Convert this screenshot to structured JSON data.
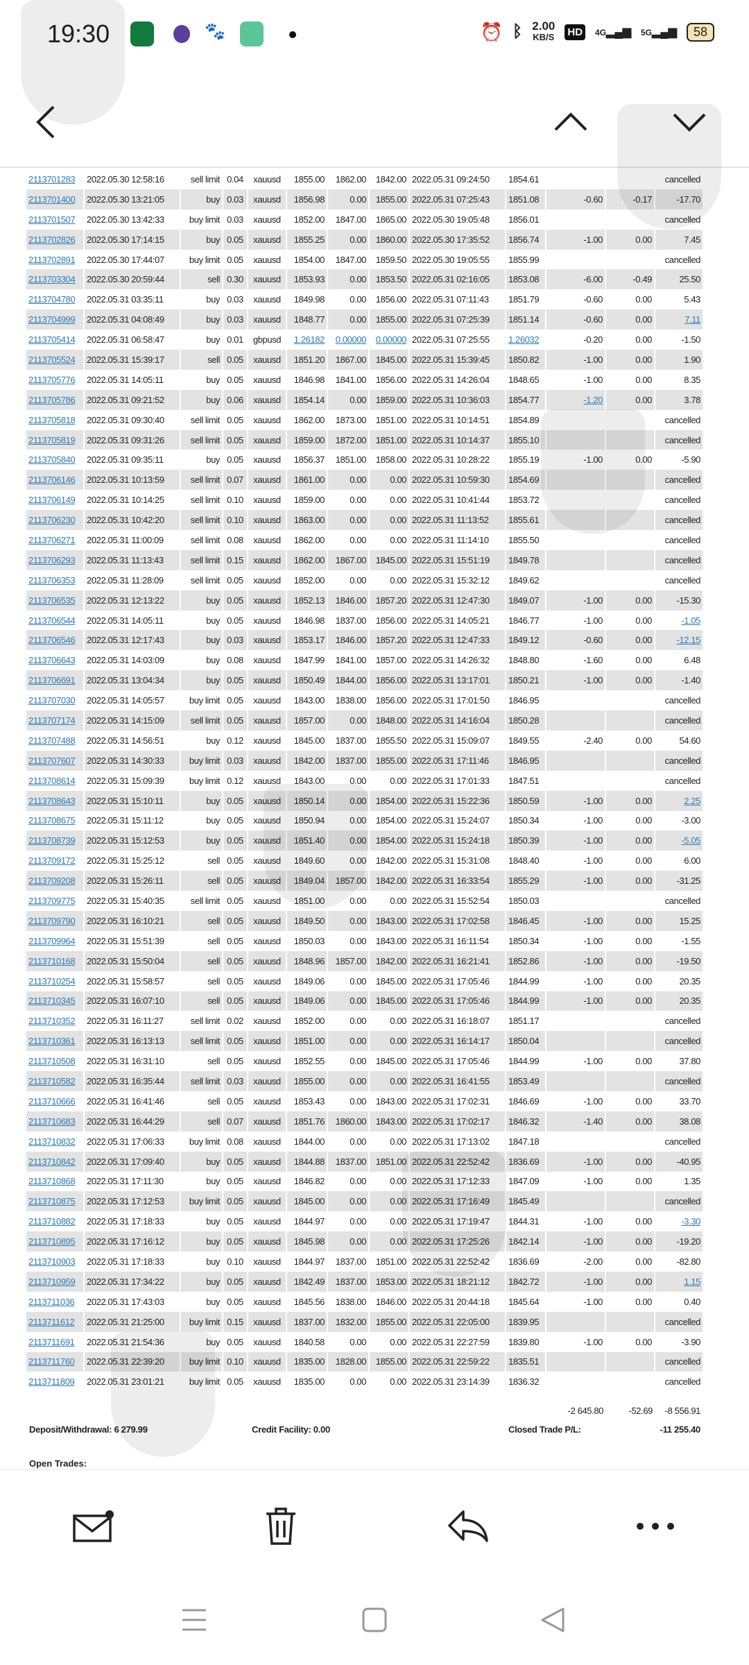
{
  "status_bar": {
    "time": "19:30",
    "net_speed": "2.00",
    "net_unit": "KB/S",
    "hd": "HD",
    "sig1": "4G",
    "sig2": "5G",
    "battery": "58",
    "icons": [
      "oppo-app-icon",
      "browser-icon",
      "baidu-paw-icon",
      "reader-icon",
      "notification-dot-icon",
      "alarm-icon",
      "bluetooth-icon",
      "signal-4g-icon",
      "signal-5g-icon",
      "battery-icon"
    ]
  },
  "nav": {
    "icons": [
      "back-arrow-icon",
      "chevron-up-icon",
      "chevron-down-icon"
    ]
  },
  "colors": {
    "link": "#2a7ab8",
    "row_alt": "#e3e3e3"
  },
  "trades": [
    [
      "2113701283",
      "2022.05.30 12:58:16",
      "sell limit",
      "0.04",
      "xauusd",
      "1855.00",
      "1862.00",
      "1842.00",
      "2022.05.31 09:24:50",
      "1854.61",
      "",
      "",
      "cancelled",
      []
    ],
    [
      "2113701400",
      "2022.05.30 13:21:05",
      "buy",
      "0.03",
      "xauusd",
      "1856.98",
      "0.00",
      "1855.00",
      "2022.05.31 07:25:43",
      "1851.08",
      "-0.60",
      "-0.17",
      "-17.70",
      []
    ],
    [
      "2113701507",
      "2022.05.30 13:42:33",
      "buy limit",
      "0.03",
      "xauusd",
      "1852.00",
      "1847.00",
      "1865.00",
      "2022.05.30 19:05:48",
      "1856.01",
      "",
      "",
      "cancelled",
      []
    ],
    [
      "2113702826",
      "2022.05.30 17:14:15",
      "buy",
      "0.05",
      "xauusd",
      "1855.25",
      "0.00",
      "1860.00",
      "2022.05.30 17:35:52",
      "1856.74",
      "-1.00",
      "0.00",
      "7.45",
      []
    ],
    [
      "2113702891",
      "2022.05.30 17:44:07",
      "buy limit",
      "0.05",
      "xauusd",
      "1854.00",
      "1847.00",
      "1859.50",
      "2022.05.30 19:05:55",
      "1855.99",
      "",
      "",
      "cancelled",
      []
    ],
    [
      "2113703304",
      "2022.05.30 20:59:44",
      "sell",
      "0.30",
      "xauusd",
      "1853.93",
      "0.00",
      "1853.50",
      "2022.05.31 02:16:05",
      "1853.08",
      "-6.00",
      "-0.49",
      "25.50",
      []
    ],
    [
      "2113704780",
      "2022.05.31 03:35:11",
      "buy",
      "0.03",
      "xauusd",
      "1849.98",
      "0.00",
      "1856.00",
      "2022.05.31 07:11:43",
      "1851.79",
      "-0.60",
      "0.00",
      "5.43",
      []
    ],
    [
      "2113704999",
      "2022.05.31 04:08:49",
      "buy",
      "0.03",
      "xauusd",
      "1848.77",
      "0.00",
      "1855.00",
      "2022.05.31 07:25:39",
      "1851.14",
      "-0.60",
      "0.00",
      "7.11",
      [
        12
      ]
    ],
    [
      "2113705414",
      "2022.05.31 06:58:47",
      "buy",
      "0.01",
      "gbpusd",
      "1.26182",
      "0.00000",
      "0.00000",
      "2022.05.31 07:25:55",
      "1.26032",
      "-0.20",
      "0.00",
      "-1.50",
      [
        5,
        6,
        7,
        9
      ]
    ],
    [
      "2113705524",
      "2022.05.31 15:39:17",
      "sell",
      "0.05",
      "xauusd",
      "1851.20",
      "1867.00",
      "1845.00",
      "2022.05.31 15:39:45",
      "1850.82",
      "-1.00",
      "0.00",
      "1.90",
      []
    ],
    [
      "2113705776",
      "2022.05.31 14:05:11",
      "buy",
      "0.05",
      "xauusd",
      "1846.98",
      "1841.00",
      "1856.00",
      "2022.05.31 14:26:04",
      "1848.65",
      "-1.00",
      "0.00",
      "8.35",
      []
    ],
    [
      "2113705786",
      "2022.05.31 09:21:52",
      "buy",
      "0.06",
      "xauusd",
      "1854.14",
      "0.00",
      "1859.00",
      "2022.05.31 10:36:03",
      "1854.77",
      "-1.20",
      "0.00",
      "3.78",
      [
        10
      ]
    ],
    [
      "2113705818",
      "2022.05.31 09:30:40",
      "sell limit",
      "0.05",
      "xauusd",
      "1862.00",
      "1873.00",
      "1851.00",
      "2022.05.31 10:14:51",
      "1854.89",
      "",
      "",
      "cancelled",
      []
    ],
    [
      "2113705819",
      "2022.05.31 09:31:26",
      "sell limit",
      "0.05",
      "xauusd",
      "1859.00",
      "1872.00",
      "1851.00",
      "2022.05.31 10:14:37",
      "1855.10",
      "",
      "",
      "cancelled",
      []
    ],
    [
      "2113705840",
      "2022.05.31 09:35:11",
      "buy",
      "0.05",
      "xauusd",
      "1856.37",
      "1851.00",
      "1858.00",
      "2022.05.31 10:28:22",
      "1855.19",
      "-1.00",
      "0.00",
      "-5.90",
      []
    ],
    [
      "2113706146",
      "2022.05.31 10:13:59",
      "sell limit",
      "0.07",
      "xauusd",
      "1861.00",
      "0.00",
      "0.00",
      "2022.05.31 10:59:30",
      "1854.69",
      "",
      "",
      "cancelled",
      []
    ],
    [
      "2113706149",
      "2022.05.31 10:14:25",
      "sell limit",
      "0.10",
      "xauusd",
      "1859.00",
      "0.00",
      "0.00",
      "2022.05.31 10:41:44",
      "1853.72",
      "",
      "",
      "cancelled",
      []
    ],
    [
      "2113706230",
      "2022.05.31 10:42:20",
      "sell limit",
      "0.10",
      "xauusd",
      "1863.00",
      "0.00",
      "0.00",
      "2022.05.31 11:13:52",
      "1855.61",
      "",
      "",
      "cancelled",
      []
    ],
    [
      "2113706271",
      "2022.05.31 11:00:09",
      "sell limit",
      "0.08",
      "xauusd",
      "1862.00",
      "0.00",
      "0.00",
      "2022.05.31 11:14:10",
      "1855.50",
      "",
      "",
      "cancelled",
      []
    ],
    [
      "2113706293",
      "2022.05.31 11:13:43",
      "sell limit",
      "0.15",
      "xauusd",
      "1862.00",
      "1867.00",
      "1845.00",
      "2022.05.31 15:51:19",
      "1849.78",
      "",
      "",
      "cancelled",
      []
    ],
    [
      "2113706353",
      "2022.05.31 11:28:09",
      "sell limit",
      "0.05",
      "xauusd",
      "1852.00",
      "0.00",
      "0.00",
      "2022.05.31 15:32:12",
      "1849.62",
      "",
      "",
      "cancelled",
      []
    ],
    [
      "2113706535",
      "2022.05.31 12:13:22",
      "buy",
      "0.05",
      "xauusd",
      "1852.13",
      "1846.00",
      "1857.20",
      "2022.05.31 12:47:30",
      "1849.07",
      "-1.00",
      "0.00",
      "-15.30",
      []
    ],
    [
      "2113706544",
      "2022.05.31 14:05:11",
      "buy",
      "0.05",
      "xauusd",
      "1846.98",
      "1837.00",
      "1856.00",
      "2022.05.31 14:05:21",
      "1846.77",
      "-1.00",
      "0.00",
      "-1.05",
      [
        12
      ]
    ],
    [
      "2113706546",
      "2022.05.31 12:17:43",
      "buy",
      "0.03",
      "xauusd",
      "1853.17",
      "1846.00",
      "1857.20",
      "2022.05.31 12:47:33",
      "1849.12",
      "-0.60",
      "0.00",
      "-12.15",
      [
        12
      ]
    ],
    [
      "2113706643",
      "2022.05.31 14:03:09",
      "buy",
      "0.08",
      "xauusd",
      "1847.99",
      "1841.00",
      "1857.00",
      "2022.05.31 14:26:32",
      "1848.80",
      "-1.60",
      "0.00",
      "6.48",
      []
    ],
    [
      "2113706691",
      "2022.05.31 13:04:34",
      "buy",
      "0.05",
      "xauusd",
      "1850.49",
      "1844.00",
      "1856.00",
      "2022.05.31 13:17:01",
      "1850.21",
      "-1.00",
      "0.00",
      "-1.40",
      []
    ],
    [
      "2113707030",
      "2022.05.31 14:05:57",
      "buy limit",
      "0.05",
      "xauusd",
      "1843.00",
      "1838.00",
      "1856.00",
      "2022.05.31 17:01:50",
      "1846.95",
      "",
      "",
      "cancelled",
      []
    ],
    [
      "2113707174",
      "2022.05.31 14:15:09",
      "sell limit",
      "0.05",
      "xauusd",
      "1857.00",
      "0.00",
      "1848.00",
      "2022.05.31 14:16:04",
      "1850.28",
      "",
      "",
      "cancelled",
      []
    ],
    [
      "2113707488",
      "2022.05.31 14:56:51",
      "buy",
      "0.12",
      "xauusd",
      "1845.00",
      "1837.00",
      "1855.50",
      "2022.05.31 15:09:07",
      "1849.55",
      "-2.40",
      "0.00",
      "54.60",
      []
    ],
    [
      "2113707607",
      "2022.05.31 14:30:33",
      "buy limit",
      "0.03",
      "xauusd",
      "1842.00",
      "1837.00",
      "1855.00",
      "2022.05.31 17:11:46",
      "1846.95",
      "",
      "",
      "cancelled",
      []
    ],
    [
      "2113708614",
      "2022.05.31 15:09:39",
      "buy limit",
      "0.12",
      "xauusd",
      "1843.00",
      "0.00",
      "0.00",
      "2022.05.31 17:01:33",
      "1847.51",
      "",
      "",
      "cancelled",
      []
    ],
    [
      "2113708643",
      "2022.05.31 15:10:11",
      "buy",
      "0.05",
      "xauusd",
      "1850.14",
      "0.00",
      "1854.00",
      "2022.05.31 15:22:36",
      "1850.59",
      "-1.00",
      "0.00",
      "2.25",
      [
        12
      ]
    ],
    [
      "2113708675",
      "2022.05.31 15:11:12",
      "buy",
      "0.05",
      "xauusd",
      "1850.94",
      "0.00",
      "1854.00",
      "2022.05.31 15:24:07",
      "1850.34",
      "-1.00",
      "0.00",
      "-3.00",
      []
    ],
    [
      "2113708739",
      "2022.05.31 15:12:53",
      "buy",
      "0.05",
      "xauusd",
      "1851.40",
      "0.00",
      "1854.00",
      "2022.05.31 15:24:18",
      "1850.39",
      "-1.00",
      "0.00",
      "-5.05",
      [
        12
      ]
    ],
    [
      "2113709172",
      "2022.05.31 15:25:12",
      "sell",
      "0.05",
      "xauusd",
      "1849.60",
      "0.00",
      "1842.00",
      "2022.05.31 15:31:08",
      "1848.40",
      "-1.00",
      "0.00",
      "6.00",
      []
    ],
    [
      "2113709208",
      "2022.05.31 15:26:11",
      "sell",
      "0.05",
      "xauusd",
      "1849.04",
      "1857.00",
      "1842.00",
      "2022.05.31 16:33:54",
      "1855.29",
      "-1.00",
      "0.00",
      "-31.25",
      []
    ],
    [
      "2113709775",
      "2022.05.31 15:40:35",
      "sell limit",
      "0.05",
      "xauusd",
      "1851.00",
      "0.00",
      "0.00",
      "2022.05.31 15:52:54",
      "1850.03",
      "",
      "",
      "cancelled",
      []
    ],
    [
      "2113709790",
      "2022.05.31 16:10:21",
      "sell",
      "0.05",
      "xauusd",
      "1849.50",
      "0.00",
      "1843.00",
      "2022.05.31 17:02:58",
      "1846.45",
      "-1.00",
      "0.00",
      "15.25",
      []
    ],
    [
      "2113709964",
      "2022.05.31 15:51:39",
      "sell",
      "0.05",
      "xauusd",
      "1850.03",
      "0.00",
      "1843.00",
      "2022.05.31 16:11:54",
      "1850.34",
      "-1.00",
      "0.00",
      "-1.55",
      []
    ],
    [
      "2113710168",
      "2022.05.31 15:50:04",
      "sell",
      "0.05",
      "xauusd",
      "1848.96",
      "1857.00",
      "1842.00",
      "2022.05.31 16:21:41",
      "1852.86",
      "-1.00",
      "0.00",
      "-19.50",
      []
    ],
    [
      "2113710254",
      "2022.05.31 15:58:57",
      "sell",
      "0.05",
      "xauusd",
      "1849.06",
      "0.00",
      "1845.00",
      "2022.05.31 17:05:46",
      "1844.99",
      "-1.00",
      "0.00",
      "20.35",
      []
    ],
    [
      "2113710345",
      "2022.05.31 16:07:10",
      "sell",
      "0.05",
      "xauusd",
      "1849.06",
      "0.00",
      "1845.00",
      "2022.05.31 17:05:46",
      "1844.99",
      "-1.00",
      "0.00",
      "20.35",
      []
    ],
    [
      "2113710352",
      "2022.05.31 16:11:27",
      "sell limit",
      "0.02",
      "xauusd",
      "1852.00",
      "0.00",
      "0.00",
      "2022.05.31 16:18:07",
      "1851.17",
      "",
      "",
      "cancelled",
      []
    ],
    [
      "2113710361",
      "2022.05.31 16:13:13",
      "sell limit",
      "0.05",
      "xauusd",
      "1851.00",
      "0.00",
      "0.00",
      "2022.05.31 16:14:17",
      "1850.04",
      "",
      "",
      "cancelled",
      []
    ],
    [
      "2113710508",
      "2022.05.31 16:31:10",
      "sell",
      "0.05",
      "xauusd",
      "1852.55",
      "0.00",
      "1845.00",
      "2022.05.31 17:05:46",
      "1844.99",
      "-1.00",
      "0.00",
      "37.80",
      []
    ],
    [
      "2113710582",
      "2022.05.31 16:35:44",
      "sell limit",
      "0.03",
      "xauusd",
      "1855.00",
      "0.00",
      "0.00",
      "2022.05.31 16:41:55",
      "1853.49",
      "",
      "",
      "cancelled",
      []
    ],
    [
      "2113710666",
      "2022.05.31 16:41:46",
      "sell",
      "0.05",
      "xauusd",
      "1853.43",
      "0.00",
      "1843.00",
      "2022.05.31 17:02:31",
      "1846.69",
      "-1.00",
      "0.00",
      "33.70",
      []
    ],
    [
      "2113710683",
      "2022.05.31 16:44:29",
      "sell",
      "0.07",
      "xauusd",
      "1851.76",
      "1860.00",
      "1843.00",
      "2022.05.31 17:02:17",
      "1846.32",
      "-1.40",
      "0.00",
      "38.08",
      []
    ],
    [
      "2113710832",
      "2022.05.31 17:06:33",
      "buy limit",
      "0.08",
      "xauusd",
      "1844.00",
      "0.00",
      "0.00",
      "2022.05.31 17:13:02",
      "1847.18",
      "",
      "",
      "cancelled",
      []
    ],
    [
      "2113710842",
      "2022.05.31 17:09:40",
      "buy",
      "0.05",
      "xauusd",
      "1844.88",
      "1837.00",
      "1851.00",
      "2022.05.31 22:52:42",
      "1836.69",
      "-1.00",
      "0.00",
      "-40.95",
      []
    ],
    [
      "2113710868",
      "2022.05.31 17:11:30",
      "buy",
      "0.05",
      "xauusd",
      "1846.82",
      "0.00",
      "0.00",
      "2022.05.31 17:12:33",
      "1847.09",
      "-1.00",
      "0.00",
      "1.35",
      []
    ],
    [
      "2113710875",
      "2022.05.31 17:12:53",
      "buy limit",
      "0.05",
      "xauusd",
      "1845.00",
      "0.00",
      "0.00",
      "2022.05.31 17:16:49",
      "1845.49",
      "",
      "",
      "cancelled",
      []
    ],
    [
      "2113710882",
      "2022.05.31 17:18:33",
      "buy",
      "0.05",
      "xauusd",
      "1844.97",
      "0.00",
      "0.00",
      "2022.05.31 17:19:47",
      "1844.31",
      "-1.00",
      "0.00",
      "-3.30",
      [
        12
      ]
    ],
    [
      "2113710895",
      "2022.05.31 17:16:12",
      "buy",
      "0.05",
      "xauusd",
      "1845.98",
      "0.00",
      "0.00",
      "2022.05.31 17:25:26",
      "1842.14",
      "-1.00",
      "0.00",
      "-19.20",
      []
    ],
    [
      "2113710903",
      "2022.05.31 17:18:33",
      "buy",
      "0.10",
      "xauusd",
      "1844.97",
      "1837.00",
      "1851.00",
      "2022.05.31 22:52:42",
      "1836.69",
      "-2.00",
      "0.00",
      "-82.80",
      []
    ],
    [
      "2113710959",
      "2022.05.31 17:34:22",
      "buy",
      "0.05",
      "xauusd",
      "1842.49",
      "1837.00",
      "1853.00",
      "2022.05.31 18:21:12",
      "1842.72",
      "-1.00",
      "0.00",
      "1.15",
      [
        12
      ]
    ],
    [
      "2113711036",
      "2022.05.31 17:43:03",
      "buy",
      "0.05",
      "xauusd",
      "1845.56",
      "1838.00",
      "1846.00",
      "2022.05.31 20:44:18",
      "1845.64",
      "-1.00",
      "0.00",
      "0.40",
      []
    ],
    [
      "2113711612",
      "2022.05.31 21:25:00",
      "buy limit",
      "0.15",
      "xauusd",
      "1837.00",
      "1832.00",
      "1855.00",
      "2022.05.31 22:05:00",
      "1839.95",
      "",
      "",
      "cancelled",
      []
    ],
    [
      "2113711691",
      "2022.05.31 21:54:36",
      "buy",
      "0.05",
      "xauusd",
      "1840.58",
      "0.00",
      "0.00",
      "2022.05.31 22:27:59",
      "1839.80",
      "-1.00",
      "0.00",
      "-3.90",
      []
    ],
    [
      "2113711760",
      "2022.05.31 22:39:20",
      "buy limit",
      "0.10",
      "xauusd",
      "1835.00",
      "1828.00",
      "1855.00",
      "2022.05.31 22:59:22",
      "1835.51",
      "",
      "",
      "cancelled",
      []
    ],
    [
      "2113711809",
      "2022.05.31 23:01:21",
      "buy limit",
      "0.05",
      "xauusd",
      "1835.00",
      "0.00",
      "0.00",
      "2022.05.31 23:14:39",
      "1836.32",
      "",
      "",
      "cancelled",
      []
    ]
  ],
  "totals": {
    "commission": "-2 645.80",
    "swap": "-52.69",
    "profit": "-8 556.91"
  },
  "summary": {
    "deposit": "Deposit/Withdrawal: 6 279.99",
    "credit": "Credit Facility: 0.00",
    "closed_label": "Closed Trade P/L:",
    "closed_value": "-11 255.40",
    "open_trades": "Open Trades:"
  },
  "toolbar": {
    "icons": [
      "mail-unread-icon",
      "trash-icon",
      "reply-icon",
      "more-icon"
    ]
  },
  "system_nav": {
    "icons": [
      "recents-icon",
      "home-icon",
      "back-icon"
    ]
  }
}
